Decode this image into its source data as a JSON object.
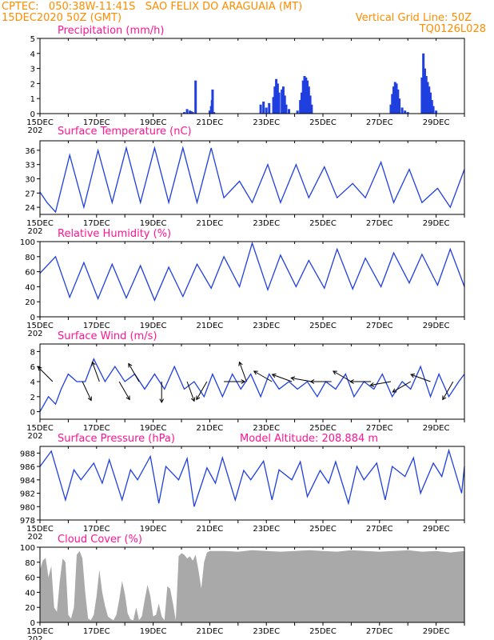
{
  "header": {
    "line1": "CPTEC:   050:38W-11:41S   SAO FELIX DO ARAGUAIA (MT)",
    "line2": "15DEC2020 50Z (GMT)",
    "grid_line": "Vertical Grid Line: 50Z",
    "code": "TQ0126L028",
    "model_altitude": "Model Altitude: 208.884 m"
  },
  "colors": {
    "series": "#1f3fdf",
    "cloud": "#a9a9a9",
    "title": "#ff1493",
    "header": "#ff8c00"
  },
  "x_axis": {
    "labels": [
      "15DEC",
      "17DEC",
      "19DEC",
      "21DEC",
      "23DEC",
      "25DEC",
      "27DEC",
      "29DEC"
    ],
    "label_days": [
      0,
      2,
      4,
      6,
      8,
      10,
      12,
      14
    ],
    "tick_every_days": 1,
    "range_days": [
      0,
      15
    ],
    "stub": "202"
  },
  "chart_data": [
    {
      "type": "bar",
      "title": "Precipitation (mm/h)",
      "ylim": [
        0,
        5
      ],
      "yticks": [
        0,
        1,
        2,
        3,
        4,
        5
      ],
      "x_unit": "days since 15DEC",
      "bars": [
        [
          5.1,
          0.1
        ],
        [
          5.2,
          0.3
        ],
        [
          5.3,
          0.2
        ],
        [
          5.35,
          0.15
        ],
        [
          5.4,
          0.1
        ],
        [
          5.5,
          2.2
        ],
        [
          6.0,
          0.2
        ],
        [
          6.05,
          0.5
        ],
        [
          6.08,
          0.9
        ],
        [
          6.1,
          1.6
        ],
        [
          6.15,
          0.1
        ],
        [
          7.8,
          0.6
        ],
        [
          7.9,
          0.8
        ],
        [
          8.0,
          0.4
        ],
        [
          8.1,
          0.7
        ],
        [
          8.25,
          1.1
        ],
        [
          8.3,
          1.8
        ],
        [
          8.35,
          2.3
        ],
        [
          8.4,
          2.0
        ],
        [
          8.45,
          1.4
        ],
        [
          8.55,
          1.6
        ],
        [
          8.6,
          1.8
        ],
        [
          8.65,
          1.2
        ],
        [
          8.7,
          0.6
        ],
        [
          8.8,
          0.3
        ],
        [
          9.1,
          0.2
        ],
        [
          9.2,
          0.9
        ],
        [
          9.25,
          1.4
        ],
        [
          9.3,
          2.2
        ],
        [
          9.35,
          2.5
        ],
        [
          9.4,
          2.4
        ],
        [
          9.45,
          2.2
        ],
        [
          9.5,
          1.8
        ],
        [
          9.55,
          1.2
        ],
        [
          9.6,
          0.6
        ],
        [
          12.4,
          0.6
        ],
        [
          12.45,
          1.3
        ],
        [
          12.5,
          1.8
        ],
        [
          12.55,
          2.1
        ],
        [
          12.6,
          2.0
        ],
        [
          12.65,
          1.6
        ],
        [
          12.7,
          1.0
        ],
        [
          12.8,
          0.4
        ],
        [
          12.9,
          0.2
        ],
        [
          13.0,
          0.1
        ],
        [
          13.5,
          2.4
        ],
        [
          13.55,
          4.0
        ],
        [
          13.6,
          3.0
        ],
        [
          13.65,
          2.5
        ],
        [
          13.7,
          2.1
        ],
        [
          13.75,
          1.8
        ],
        [
          13.8,
          1.4
        ],
        [
          13.85,
          0.9
        ],
        [
          13.9,
          0.5
        ],
        [
          14.0,
          0.2
        ]
      ]
    },
    {
      "type": "line",
      "title": "Surface Temperature (nC)",
      "ylim": [
        22.5,
        38
      ],
      "yticks": [
        24,
        27,
        30,
        33,
        36
      ],
      "x_unit": "days since 15DEC",
      "x": [
        0,
        0.25,
        0.55,
        1.05,
        1.55,
        2.05,
        2.55,
        3.05,
        3.55,
        4.05,
        4.55,
        5.05,
        5.55,
        6.05,
        6.5,
        7.05,
        7.5,
        8.05,
        8.5,
        9.05,
        9.5,
        10.05,
        10.5,
        11.05,
        11.5,
        12.05,
        12.5,
        13.05,
        13.5,
        14.05,
        14.5,
        15
      ],
      "y": [
        27.2,
        25,
        23,
        35,
        24,
        36,
        25,
        36.5,
        25,
        36.5,
        25,
        36.5,
        25,
        36.5,
        26,
        29.5,
        25,
        33,
        25,
        33,
        26,
        32.5,
        26,
        29,
        26,
        33.5,
        25,
        32,
        25,
        28,
        24,
        32
      ]
    },
    {
      "type": "line",
      "title": "Relative Humidity (%)",
      "ylim": [
        0,
        100
      ],
      "yticks": [
        0,
        20,
        40,
        60,
        80,
        100
      ],
      "x_unit": "days since 15DEC",
      "x": [
        0,
        0.55,
        1.05,
        1.55,
        2.05,
        2.55,
        3.05,
        3.55,
        4.05,
        4.55,
        5.05,
        5.55,
        6.05,
        6.5,
        7.05,
        7.5,
        8.05,
        8.5,
        9.05,
        9.5,
        10.05,
        10.5,
        11.05,
        11.5,
        12.05,
        12.5,
        13.05,
        13.5,
        14.05,
        14.5,
        15
      ],
      "y": [
        58,
        80,
        26,
        72,
        24,
        70,
        25,
        68,
        22,
        66,
        27,
        70,
        38,
        80,
        40,
        98,
        36,
        82,
        40,
        75,
        38,
        90,
        37,
        78,
        40,
        85,
        45,
        83,
        42,
        90,
        40
      ]
    },
    {
      "type": "line",
      "title": "Surface Wind (m/s)",
      "ylim": [
        -1,
        9
      ],
      "yticks": [
        0,
        2,
        4,
        6,
        8
      ],
      "x_unit": "days since 15DEC",
      "x": [
        0,
        0.3,
        0.55,
        0.75,
        1.0,
        1.3,
        1.6,
        1.9,
        2.3,
        2.65,
        3.0,
        3.35,
        3.7,
        4.05,
        4.4,
        4.75,
        5.1,
        5.45,
        5.8,
        6.1,
        6.45,
        6.8,
        7.1,
        7.45,
        7.8,
        8.1,
        8.45,
        8.8,
        9.1,
        9.45,
        9.8,
        10.1,
        10.45,
        10.8,
        11.1,
        11.45,
        11.8,
        12.1,
        12.45,
        12.8,
        13.1,
        13.45,
        13.8,
        14.1,
        14.45,
        14.8,
        15
      ],
      "y": [
        0,
        2,
        1,
        3,
        5,
        4,
        4,
        7,
        4,
        6,
        4,
        5,
        3,
        5,
        3,
        6,
        3,
        4,
        2,
        5,
        2,
        5,
        3,
        5,
        2,
        5,
        3,
        4,
        3,
        4,
        2,
        4,
        3,
        5,
        2,
        4,
        3,
        5,
        2,
        4,
        3,
        6,
        2,
        5,
        2,
        4,
        5
      ],
      "arrows": [
        [
          0.45,
          225
        ],
        [
          1.5,
          25
        ],
        [
          2.1,
          200
        ],
        [
          2.8,
          30
        ],
        [
          3.5,
          210
        ],
        [
          4.3,
          0
        ],
        [
          5.2,
          20
        ],
        [
          5.9,
          330
        ],
        [
          6.5,
          90
        ],
        [
          7.3,
          200
        ],
        [
          8.2,
          240
        ],
        [
          8.9,
          250
        ],
        [
          9.6,
          260
        ],
        [
          10.3,
          270
        ],
        [
          11.0,
          240
        ],
        [
          11.7,
          270
        ],
        [
          12.4,
          280
        ],
        [
          13.1,
          300
        ],
        [
          13.8,
          250
        ],
        [
          14.6,
          330
        ]
      ]
    },
    {
      "type": "line",
      "title": "Surface Pressure (hPa)",
      "ylim": [
        978,
        989
      ],
      "yticks": [
        978,
        980,
        982,
        984,
        986,
        988
      ],
      "x_unit": "days since 15DEC",
      "x": [
        0,
        0.4,
        0.9,
        1.2,
        1.45,
        1.9,
        2.2,
        2.45,
        2.9,
        3.2,
        3.45,
        3.9,
        4.2,
        4.45,
        4.9,
        5.2,
        5.45,
        5.9,
        6.2,
        6.45,
        6.9,
        7.2,
        7.45,
        7.9,
        8.2,
        8.45,
        8.9,
        9.2,
        9.45,
        9.9,
        10.2,
        10.45,
        10.9,
        11.2,
        11.45,
        11.9,
        12.2,
        12.45,
        12.9,
        13.2,
        13.45,
        13.9,
        14.2,
        14.45,
        14.9,
        15
      ],
      "y": [
        986,
        988.3,
        981,
        985.5,
        984,
        986.5,
        983.5,
        987,
        981,
        985.5,
        984,
        987.5,
        980.5,
        986,
        984,
        987.2,
        980,
        985.8,
        983.5,
        987.3,
        981,
        985.4,
        984,
        986.8,
        981,
        985.5,
        984,
        986.7,
        981.5,
        985.4,
        983.5,
        986.7,
        980.5,
        986,
        984,
        986.5,
        981,
        986,
        984.5,
        987.3,
        982,
        986.5,
        984.5,
        988.4,
        982,
        986
      ]
    },
    {
      "type": "area",
      "title": "Cloud Cover (%)",
      "ylim": [
        0,
        100
      ],
      "yticks": [
        0,
        20,
        40,
        60,
        80,
        100
      ],
      "x_unit": "days since 15DEC",
      "x": [
        0,
        0.1,
        0.2,
        0.3,
        0.4,
        0.5,
        0.6,
        0.7,
        0.8,
        0.9,
        1.0,
        1.1,
        1.2,
        1.3,
        1.4,
        1.5,
        1.6,
        1.7,
        1.8,
        1.9,
        2.0,
        2.1,
        2.2,
        2.3,
        2.4,
        2.5,
        2.6,
        2.7,
        2.8,
        2.9,
        3.0,
        3.1,
        3.2,
        3.3,
        3.4,
        3.5,
        3.6,
        3.7,
        3.8,
        3.9,
        4.0,
        4.1,
        4.2,
        4.3,
        4.4,
        4.5,
        4.6,
        4.7,
        4.8,
        4.9,
        5.0,
        5.1,
        5.2,
        5.3,
        5.4,
        5.5,
        5.6,
        5.7,
        5.8,
        5.9,
        6.0,
        6.5,
        7.0,
        7.5,
        8.0,
        8.5,
        9.0,
        9.5,
        10.0,
        10.5,
        11.0,
        11.5,
        12.0,
        12.5,
        13.0,
        13.5,
        14.0,
        14.5,
        15
      ],
      "y": [
        70,
        82,
        86,
        60,
        75,
        20,
        14,
        55,
        85,
        80,
        10,
        5,
        20,
        90,
        95,
        85,
        40,
        5,
        3,
        10,
        35,
        70,
        40,
        22,
        8,
        5,
        3,
        10,
        30,
        55,
        38,
        12,
        4,
        3,
        20,
        3,
        8,
        30,
        50,
        35,
        8,
        10,
        25,
        8,
        3,
        48,
        45,
        25,
        3,
        88,
        92,
        90,
        85,
        88,
        82,
        90,
        70,
        45,
        80,
        93,
        95,
        95,
        94,
        96,
        95,
        94,
        95,
        96,
        95,
        94,
        96,
        95,
        94,
        95,
        96,
        94,
        95,
        93,
        95
      ]
    }
  ]
}
